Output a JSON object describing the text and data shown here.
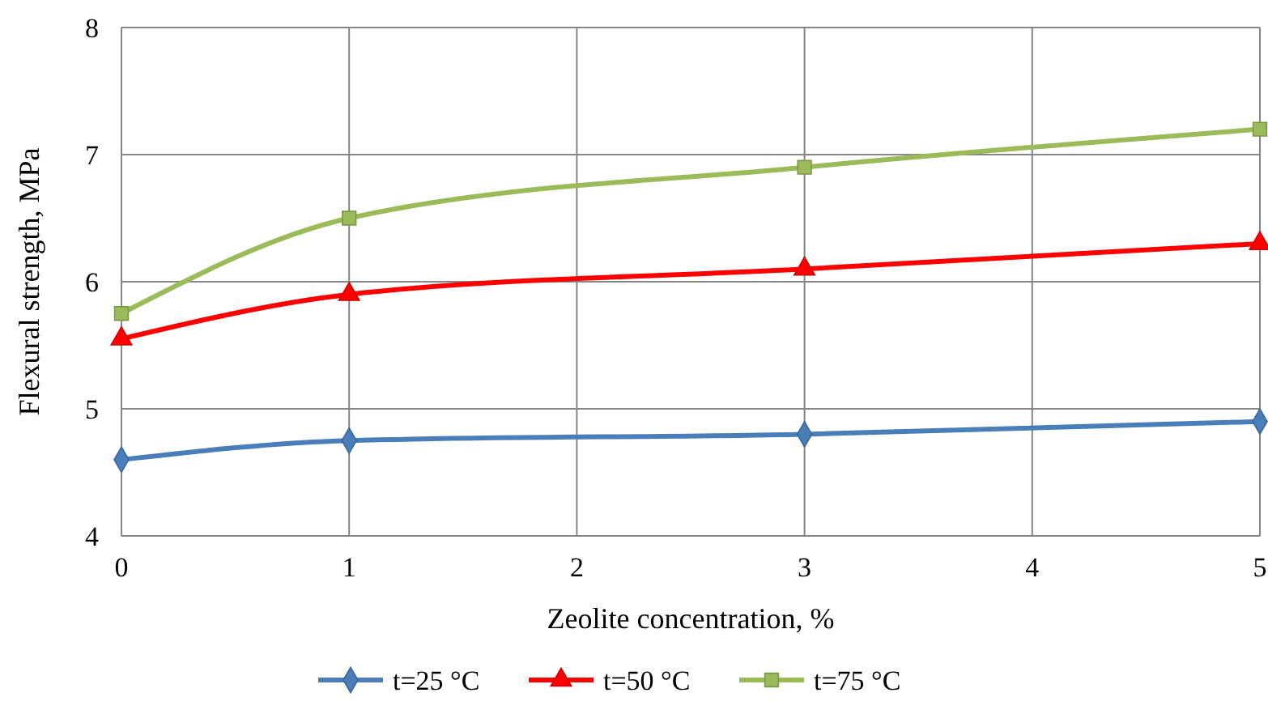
{
  "chart_data": {
    "type": "line",
    "xlabel": "Zeolite concentration, %",
    "ylabel": "Flexural strength, MPa",
    "x": [
      0,
      1,
      3,
      5
    ],
    "xlim": [
      0,
      5
    ],
    "xticks": [
      0,
      1,
      2,
      3,
      4,
      5
    ],
    "ylim": [
      4,
      8
    ],
    "yticks": [
      4,
      5,
      6,
      7,
      8
    ],
    "grid": true,
    "legend": "bottom",
    "series": [
      {
        "name": "t=25 °C",
        "color": "#4a7ebb",
        "marker": "diamond",
        "values": [
          4.6,
          4.75,
          4.8,
          4.9
        ]
      },
      {
        "name": "t=50 °C",
        "color": "#ff0000",
        "marker": "triangle",
        "values": [
          5.55,
          5.9,
          6.1,
          6.3
        ]
      },
      {
        "name": "t=75 °C",
        "color": "#9bbb59",
        "marker": "square",
        "values": [
          5.75,
          6.5,
          6.9,
          7.2
        ]
      }
    ]
  }
}
